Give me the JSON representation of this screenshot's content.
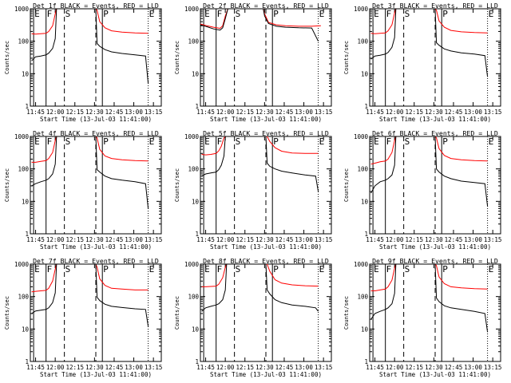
{
  "chart_data": {
    "type": "line",
    "yscale": "log",
    "ylim": [
      1,
      1000
    ],
    "ylabel": "Counts/sec",
    "xlabel": "Start Time (13-Jul-03 11:41:00)",
    "x_ticks": [
      "11:45",
      "12:00",
      "12:15",
      "12:30",
      "12:45",
      "13:00",
      "13:15"
    ],
    "y_ticks": [
      "1",
      "10",
      "100",
      "1000"
    ],
    "x_unit": "minutes after 11:41:00",
    "xlim": [
      0,
      100
    ],
    "series_names": [
      "Events",
      "LLD"
    ],
    "series_colors": {
      "events": "#000000",
      "lld": "#ff0000"
    },
    "markers": [
      {
        "label": "E",
        "minutes": 2.5,
        "style": "solid"
      },
      {
        "label": "F",
        "minutes": 12,
        "style": "solid"
      },
      {
        "label": "S",
        "minutes": 26,
        "style": "dashed"
      },
      {
        "label": "",
        "minutes": 50,
        "style": "dashed"
      },
      {
        "label": "P",
        "minutes": 55,
        "style": "solid"
      },
      {
        "label": "E",
        "minutes": 90,
        "style": "dotted"
      }
    ],
    "panels": [
      {
        "title": "Det 1f BLACK = Events, RED = LLD",
        "events": {
          "x": [
            1,
            4,
            8,
            12,
            14,
            17,
            19,
            20,
            50,
            51,
            53,
            57,
            62,
            70,
            80,
            88,
            90
          ],
          "y": [
            25,
            33,
            35,
            38,
            43,
            60,
            120,
            1000,
            1000,
            85,
            70,
            55,
            47,
            42,
            38,
            35,
            5
          ]
        },
        "lld": {
          "x": [
            1,
            4,
            8,
            12,
            14,
            17,
            19,
            20,
            50,
            51,
            53,
            57,
            62,
            70,
            80,
            90
          ],
          "y": [
            170,
            165,
            170,
            175,
            200,
            300,
            700,
            1000,
            1000,
            900,
            400,
            260,
            210,
            190,
            180,
            175
          ]
        }
      },
      {
        "title": "Det 2f BLACK = Events, RED = LLD",
        "events": {
          "x": [
            0,
            5,
            10,
            15,
            17,
            19,
            21,
            48,
            49,
            52,
            58,
            65,
            75,
            85,
            90
          ],
          "y": [
            320,
            280,
            240,
            220,
            260,
            500,
            1000,
            1000,
            600,
            350,
            290,
            270,
            260,
            255,
            100
          ]
        },
        "lld": {
          "x": [
            0,
            5,
            10,
            15,
            17,
            19,
            21,
            48,
            49,
            52,
            58,
            65,
            75,
            85,
            92
          ],
          "y": [
            340,
            300,
            270,
            250,
            300,
            600,
            1000,
            1000,
            700,
            380,
            320,
            300,
            290,
            290,
            300
          ]
        }
      },
      {
        "title": "Det 3f BLACK = Events, RED = LLD",
        "events": {
          "x": [
            1,
            4,
            8,
            12,
            14,
            17,
            19,
            20,
            50,
            51,
            53,
            57,
            62,
            70,
            80,
            88,
            90
          ],
          "y": [
            28,
            35,
            37,
            40,
            45,
            65,
            130,
            1000,
            1000,
            90,
            75,
            58,
            50,
            44,
            40,
            36,
            8
          ]
        },
        "lld": {
          "x": [
            1,
            4,
            8,
            12,
            14,
            17,
            19,
            20,
            50,
            51,
            53,
            57,
            62,
            70,
            80,
            90
          ],
          "y": [
            175,
            170,
            175,
            180,
            210,
            320,
            750,
            1000,
            1000,
            900,
            420,
            270,
            215,
            195,
            185,
            180
          ]
        }
      },
      {
        "title": "Det 4f BLACK = Events, RED = LLD",
        "events": {
          "x": [
            1,
            4,
            8,
            12,
            14,
            17,
            19,
            20,
            50,
            51,
            53,
            57,
            62,
            70,
            80,
            88,
            90
          ],
          "y": [
            30,
            35,
            40,
            45,
            50,
            70,
            140,
            1000,
            1000,
            95,
            80,
            60,
            50,
            45,
            40,
            35,
            6
          ]
        },
        "lld": {
          "x": [
            1,
            4,
            8,
            12,
            14,
            17,
            19,
            20,
            50,
            51,
            53,
            57,
            62,
            70,
            80,
            90
          ],
          "y": [
            160,
            160,
            170,
            180,
            210,
            320,
            750,
            1000,
            1000,
            900,
            400,
            250,
            210,
            190,
            180,
            175
          ]
        }
      },
      {
        "title": "Det 5f BLACK = Events, RED = LLD",
        "events": {
          "x": [
            1,
            4,
            8,
            12,
            14,
            16,
            18,
            19,
            50,
            51,
            53,
            57,
            62,
            70,
            80,
            88,
            90
          ],
          "y": [
            60,
            70,
            75,
            80,
            95,
            130,
            250,
            1000,
            1000,
            150,
            120,
            100,
            85,
            75,
            65,
            60,
            20
          ]
        },
        "lld": {
          "x": [
            1,
            4,
            8,
            12,
            14,
            16,
            18,
            19,
            50,
            51,
            53,
            57,
            62,
            70,
            80,
            90
          ],
          "y": [
            280,
            270,
            280,
            300,
            360,
            500,
            900,
            1000,
            1000,
            1000,
            700,
            450,
            350,
            310,
            300,
            300
          ]
        }
      },
      {
        "title": "Det 6f BLACK = Events, RED = LLD",
        "events": {
          "x": [
            1,
            4,
            8,
            12,
            14,
            17,
            19,
            20,
            50,
            51,
            53,
            57,
            62,
            70,
            80,
            88,
            90
          ],
          "y": [
            18,
            30,
            40,
            45,
            50,
            65,
            130,
            1000,
            1000,
            100,
            80,
            60,
            50,
            42,
            38,
            35,
            7
          ]
        },
        "lld": {
          "x": [
            1,
            4,
            8,
            12,
            14,
            17,
            19,
            20,
            50,
            51,
            53,
            57,
            62,
            70,
            80,
            90
          ],
          "y": [
            140,
            150,
            165,
            175,
            200,
            320,
            750,
            1000,
            1000,
            900,
            420,
            260,
            210,
            190,
            180,
            175
          ]
        }
      },
      {
        "title": "Det 7f BLACK = Events, RED = LLD",
        "events": {
          "x": [
            1,
            4,
            8,
            12,
            14,
            17,
            19,
            20,
            50,
            51,
            53,
            57,
            62,
            70,
            80,
            88,
            90
          ],
          "y": [
            30,
            36,
            38,
            40,
            45,
            65,
            130,
            1000,
            1000,
            95,
            75,
            58,
            50,
            46,
            42,
            40,
            12
          ]
        },
        "lld": {
          "x": [
            1,
            4,
            8,
            12,
            14,
            17,
            19,
            20,
            50,
            51,
            53,
            57,
            62,
            70,
            80,
            90
          ],
          "y": [
            140,
            145,
            150,
            155,
            180,
            300,
            700,
            1000,
            1000,
            800,
            350,
            220,
            180,
            170,
            160,
            160
          ]
        }
      },
      {
        "title": "Det 8f BLACK = Events, RED = LLD",
        "events": {
          "x": [
            1,
            4,
            8,
            12,
            14,
            17,
            19,
            20,
            50,
            51,
            53,
            57,
            62,
            70,
            80,
            88,
            90
          ],
          "y": [
            35,
            45,
            50,
            55,
            60,
            80,
            160,
            1000,
            1000,
            160,
            120,
            80,
            65,
            55,
            50,
            45,
            35
          ]
        },
        "lld": {
          "x": [
            1,
            4,
            8,
            12,
            14,
            17,
            19,
            20,
            50,
            51,
            53,
            57,
            62,
            70,
            80,
            90
          ],
          "y": [
            200,
            200,
            205,
            210,
            240,
            380,
            800,
            1000,
            1000,
            1000,
            600,
            330,
            260,
            230,
            215,
            210
          ]
        }
      },
      {
        "title": "Det 9f BLACK = Events, RED = LLD",
        "events": {
          "x": [
            1,
            4,
            8,
            12,
            14,
            17,
            19,
            20,
            50,
            51,
            53,
            57,
            62,
            70,
            80,
            88,
            90
          ],
          "y": [
            20,
            30,
            35,
            40,
            45,
            60,
            125,
            1000,
            1000,
            90,
            70,
            52,
            45,
            40,
            35,
            30,
            8
          ]
        },
        "lld": {
          "x": [
            1,
            4,
            8,
            12,
            14,
            17,
            19,
            20,
            50,
            51,
            53,
            57,
            62,
            70,
            80,
            90
          ],
          "y": [
            150,
            150,
            160,
            170,
            200,
            320,
            750,
            1000,
            1000,
            900,
            400,
            250,
            200,
            185,
            175,
            170
          ]
        }
      }
    ]
  }
}
